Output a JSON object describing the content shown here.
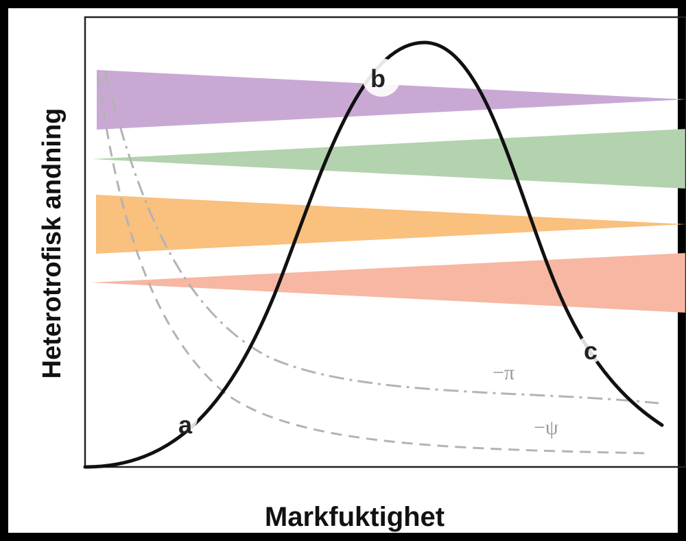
{
  "diagram": {
    "ylabel": "Heterotrofisk andning",
    "xlabel": "Markfuktighet",
    "points": {
      "a": "a",
      "b": "b",
      "c": "c"
    },
    "curve_labels": {
      "pi": "−π",
      "psi": "−ψ"
    },
    "band_colors": {
      "purple": "#c9a9d4",
      "green": "#b3d2ae",
      "orange": "#f9c07e",
      "salmon": "#f7b7a2"
    },
    "curve_color": "#111111",
    "dashed_color": "#b3b3b3"
  }
}
